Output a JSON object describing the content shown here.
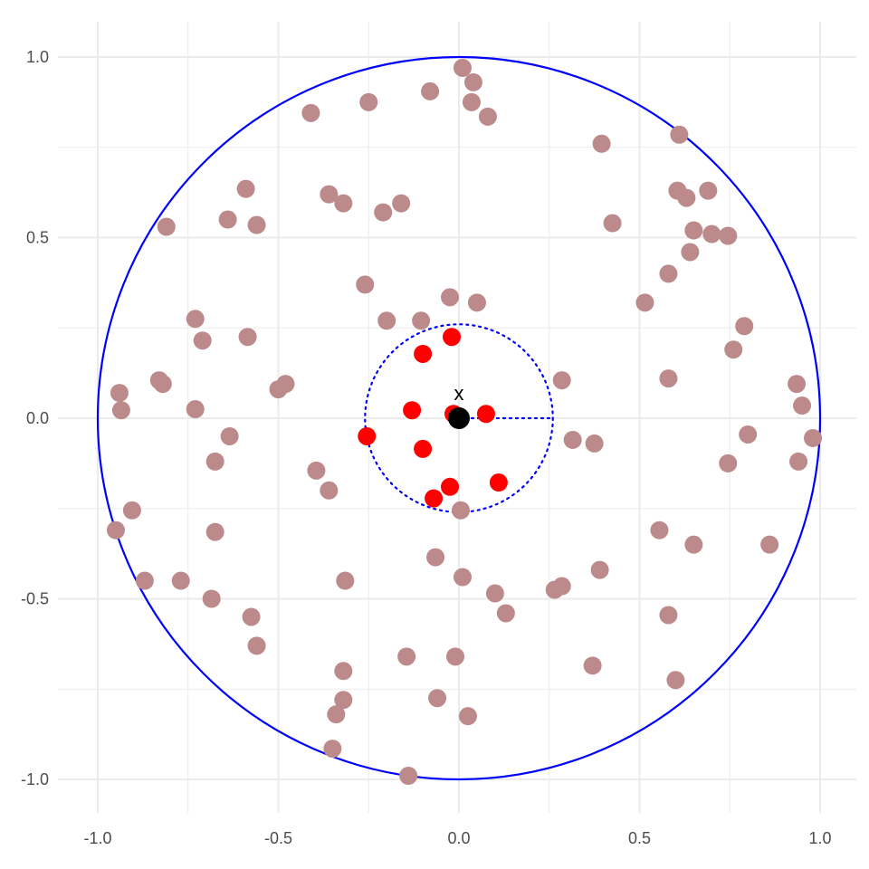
{
  "chart_data": {
    "type": "scatter",
    "xlim": [
      -1.0,
      1.0
    ],
    "ylim": [
      -1.0,
      1.0
    ],
    "x_ticks": [
      -1.0,
      -0.5,
      0.0,
      0.5,
      1.0
    ],
    "y_ticks": [
      -1.0,
      -0.5,
      0.0,
      0.5,
      1.0
    ],
    "x_tick_labels": [
      "-1.0",
      "-0.5",
      "0.0",
      "0.5",
      "1.0"
    ],
    "y_tick_labels": [
      "-1.0",
      "-0.5",
      "0.0",
      "0.5",
      "1.0"
    ],
    "grid": true,
    "outer_circle": {
      "center": [
        0,
        0
      ],
      "radius": 1.0,
      "color": "#0000ff",
      "style": "solid"
    },
    "inner_circle": {
      "center": [
        0,
        0
      ],
      "radius": 0.26,
      "color": "#0000ff",
      "style": "dotted"
    },
    "radius_segment": {
      "from": [
        0,
        0
      ],
      "to": [
        0.26,
        0
      ],
      "color": "#0000ff",
      "style": "dotted"
    },
    "center_point": {
      "x": 0.0,
      "y": 0.0,
      "label": "x",
      "color": "#000000"
    },
    "colors": {
      "outside": "#bc8a8a",
      "inside": "#ff0000",
      "circle": "#0000ff",
      "grid": "#ebebeb"
    },
    "series": [
      {
        "key": "outside",
        "points": [
          [
            0.01,
            0.97
          ],
          [
            0.04,
            0.93
          ],
          [
            -0.08,
            0.905
          ],
          [
            0.035,
            0.875
          ],
          [
            -0.25,
            0.875
          ],
          [
            0.08,
            0.835
          ],
          [
            -0.41,
            0.845
          ],
          [
            0.61,
            0.785
          ],
          [
            0.395,
            0.76
          ],
          [
            0.605,
            0.63
          ],
          [
            0.63,
            0.61
          ],
          [
            0.69,
            0.63
          ],
          [
            -0.59,
            0.635
          ],
          [
            -0.36,
            0.62
          ],
          [
            -0.32,
            0.595
          ],
          [
            -0.16,
            0.595
          ],
          [
            -0.21,
            0.57
          ],
          [
            -0.64,
            0.55
          ],
          [
            -0.56,
            0.535
          ],
          [
            -0.81,
            0.53
          ],
          [
            0.425,
            0.54
          ],
          [
            0.65,
            0.52
          ],
          [
            0.7,
            0.51
          ],
          [
            0.745,
            0.505
          ],
          [
            0.64,
            0.46
          ],
          [
            0.58,
            0.4
          ],
          [
            -0.26,
            0.37
          ],
          [
            -0.025,
            0.335
          ],
          [
            0.05,
            0.32
          ],
          [
            0.515,
            0.32
          ],
          [
            -0.73,
            0.275
          ],
          [
            -0.2,
            0.27
          ],
          [
            -0.105,
            0.27
          ],
          [
            0.79,
            0.255
          ],
          [
            -0.585,
            0.225
          ],
          [
            -0.71,
            0.215
          ],
          [
            0.76,
            0.19
          ],
          [
            0.58,
            0.11
          ],
          [
            0.285,
            0.105
          ],
          [
            -0.83,
            0.105
          ],
          [
            -0.82,
            0.095
          ],
          [
            -0.48,
            0.095
          ],
          [
            -0.5,
            0.08
          ],
          [
            0.935,
            0.095
          ],
          [
            -0.94,
            0.07
          ],
          [
            0.95,
            0.035
          ],
          [
            -0.73,
            0.025
          ],
          [
            -0.935,
            0.022
          ],
          [
            -0.635,
            -0.05
          ],
          [
            0.8,
            -0.045
          ],
          [
            0.98,
            -0.055
          ],
          [
            0.315,
            -0.06
          ],
          [
            0.375,
            -0.07
          ],
          [
            -0.675,
            -0.12
          ],
          [
            0.94,
            -0.12
          ],
          [
            0.745,
            -0.125
          ],
          [
            -0.395,
            -0.145
          ],
          [
            -0.36,
            -0.2
          ],
          [
            0.005,
            -0.255
          ],
          [
            -0.905,
            -0.255
          ],
          [
            -0.95,
            -0.31
          ],
          [
            -0.675,
            -0.315
          ],
          [
            0.555,
            -0.31
          ],
          [
            0.65,
            -0.35
          ],
          [
            0.86,
            -0.35
          ],
          [
            -0.065,
            -0.385
          ],
          [
            0.39,
            -0.42
          ],
          [
            0.01,
            -0.44
          ],
          [
            -0.87,
            -0.45
          ],
          [
            -0.77,
            -0.45
          ],
          [
            -0.315,
            -0.45
          ],
          [
            0.285,
            -0.465
          ],
          [
            0.265,
            -0.475
          ],
          [
            0.1,
            -0.485
          ],
          [
            -0.685,
            -0.5
          ],
          [
            0.13,
            -0.54
          ],
          [
            0.58,
            -0.545
          ],
          [
            -0.575,
            -0.55
          ],
          [
            -0.56,
            -0.63
          ],
          [
            -0.145,
            -0.66
          ],
          [
            -0.01,
            -0.66
          ],
          [
            0.37,
            -0.685
          ],
          [
            -0.32,
            -0.7
          ],
          [
            0.6,
            -0.725
          ],
          [
            -0.06,
            -0.775
          ],
          [
            -0.32,
            -0.78
          ],
          [
            -0.34,
            -0.82
          ],
          [
            0.025,
            -0.825
          ],
          [
            -0.35,
            -0.915
          ],
          [
            -0.14,
            -0.99
          ]
        ]
      },
      {
        "key": "inside",
        "points": [
          [
            -0.02,
            0.225
          ],
          [
            -0.1,
            0.178
          ],
          [
            -0.13,
            0.022
          ],
          [
            -0.015,
            0.012
          ],
          [
            0.075,
            0.012
          ],
          [
            -0.255,
            -0.05
          ],
          [
            -0.1,
            -0.085
          ],
          [
            0.11,
            -0.178
          ],
          [
            -0.025,
            -0.19
          ],
          [
            -0.07,
            -0.222
          ]
        ]
      }
    ]
  }
}
